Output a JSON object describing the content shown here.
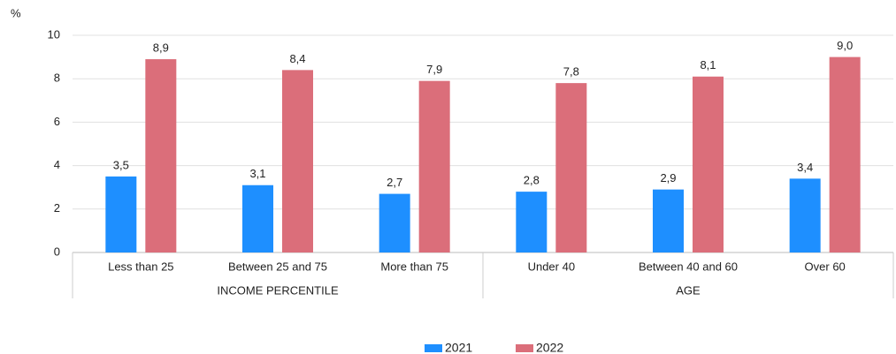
{
  "chart_data": {
    "type": "bar",
    "y_label": "%",
    "groups": [
      {
        "name": "INCOME PERCENTILE",
        "categories": [
          "Less than 25",
          "Between 25 and 75",
          "More than 75"
        ]
      },
      {
        "name": "AGE",
        "categories": [
          "Under 40",
          "Between 40 and 60",
          "Over 60"
        ]
      }
    ],
    "series": [
      {
        "name": "2021",
        "color": "#1e8fff",
        "values": [
          3.5,
          3.1,
          2.7,
          2.8,
          2.9,
          3.4
        ],
        "value_labels": [
          "3,5",
          "3,1",
          "2,7",
          "2,8",
          "2,9",
          "3,4"
        ]
      },
      {
        "name": "2022",
        "color": "#db6e7a",
        "values": [
          8.9,
          8.4,
          7.9,
          7.8,
          8.1,
          9.0
        ],
        "value_labels": [
          "8,9",
          "8,4",
          "7,9",
          "7,8",
          "8,1",
          "9,0"
        ]
      }
    ],
    "ylim": [
      0,
      10
    ],
    "yticks": [
      0,
      2,
      4,
      6,
      8,
      10
    ],
    "grid": true
  }
}
